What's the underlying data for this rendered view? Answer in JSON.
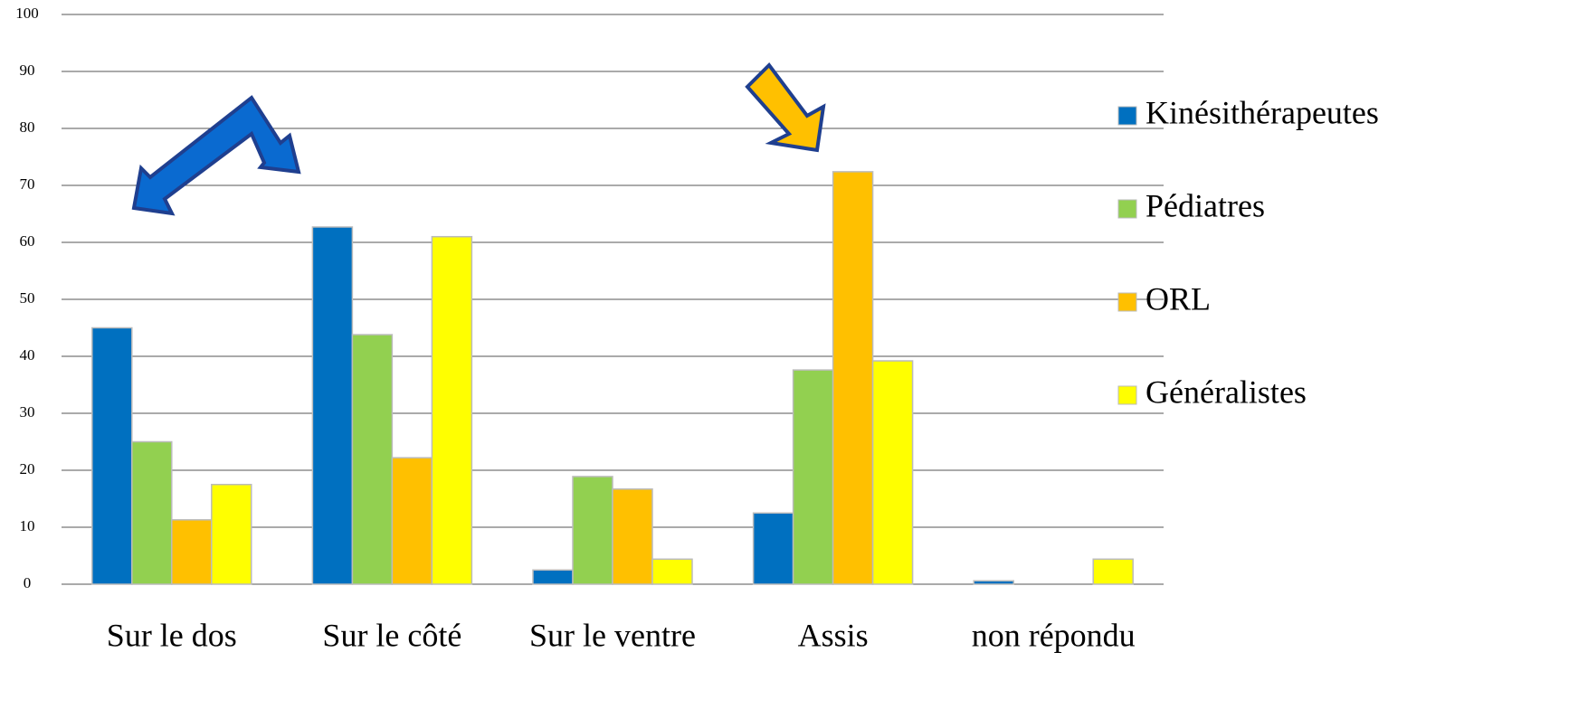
{
  "chart_data": {
    "type": "bar",
    "categories": [
      "Sur le dos",
      "Sur le côté",
      "Sur le ventre",
      "Assis",
      "non répondu"
    ],
    "series": [
      {
        "name": "Kinésithérapeutes",
        "color": "#0070c0",
        "values": [
          45,
          62.7,
          2.5,
          12.5,
          0.6
        ]
      },
      {
        "name": "Pédiatres",
        "color": "#92d050",
        "values": [
          25,
          43.8,
          18.9,
          37.6,
          0
        ]
      },
      {
        "name": "ORL",
        "color": "#ffc000",
        "values": [
          11.3,
          22.2,
          16.7,
          72.4,
          0
        ]
      },
      {
        "name": "Généralistes",
        "color": "#ffff00",
        "values": [
          17.5,
          61,
          4.4,
          39.2,
          4.4
        ]
      }
    ],
    "ylim": [
      0,
      100
    ],
    "yticks": [
      0,
      10,
      20,
      30,
      40,
      50,
      60,
      70,
      80,
      90,
      100
    ],
    "grid": true,
    "legend": "right"
  }
}
